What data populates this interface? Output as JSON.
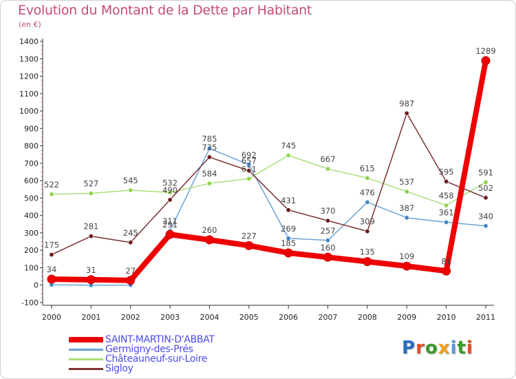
{
  "header": {
    "title": "Evolution du Montant de la Dette par Habitant",
    "unit": "(en €)"
  },
  "chart_data": {
    "type": "line",
    "title": "Evolution du Montant de la Dette par Habitant",
    "subtitle": "(en €)",
    "xlabel": "",
    "ylabel": "",
    "x": [
      "2000",
      "2001",
      "2002",
      "2003",
      "2004",
      "2005",
      "2006",
      "2007",
      "2008",
      "2009",
      "2010",
      "2011"
    ],
    "ylim": [
      -100,
      1400
    ],
    "yticks": [
      -100,
      0,
      100,
      200,
      300,
      400,
      500,
      600,
      700,
      800,
      900,
      1000,
      1100,
      1200,
      1300,
      1400
    ],
    "grid": false,
    "legend": "bottom-left",
    "series": [
      {
        "name": "Germigny-des-Prés",
        "color": "#6aa2d6",
        "marker": "#3f86c9",
        "values": [
          2,
          -1,
          0,
          311,
          785,
          692,
          269,
          257,
          476,
          387,
          361,
          340
        ],
        "labels": [
          "",
          "",
          "",
          "311",
          "785",
          "692",
          "269",
          "257",
          "476",
          "387",
          "361",
          "340"
        ]
      },
      {
        "name": "Châteauneuf-sur-Loire",
        "color": "#a9de78",
        "marker": "#8fd34f",
        "values": [
          522,
          527,
          545,
          532,
          584,
          611,
          745,
          667,
          615,
          537,
          458,
          591
        ],
        "labels": [
          "522",
          "527",
          "545",
          "532",
          "584",
          "611",
          "745",
          "667",
          "615",
          "537",
          "458",
          "591"
        ]
      },
      {
        "name": "Sigloy",
        "color": "#7a3030",
        "marker": "#6b1a1a",
        "values": [
          175,
          281,
          245,
          490,
          735,
          657,
          431,
          370,
          309,
          987,
          595,
          502
        ],
        "labels": [
          "175",
          "281",
          "245",
          "490",
          "735",
          "657",
          "431",
          "370",
          "309",
          "987",
          "595",
          "502"
        ]
      },
      {
        "name": "SAINT-MARTIN-D'ABBAT",
        "color": "#ee0000",
        "marker": "#ee0000",
        "values": [
          34,
          31,
          27,
          291,
          260,
          227,
          185,
          160,
          135,
          109,
          81,
          1289
        ],
        "labels": [
          "34",
          "31",
          "27",
          "291",
          "260",
          "227",
          "185",
          "160",
          "135",
          "109",
          "81",
          "1289"
        ]
      }
    ],
    "legend_order": [
      "SAINT-MARTIN-D'ABBAT",
      "Germigny-des-Prés",
      "Châteauneuf-sur-Loire",
      "Sigloy"
    ]
  },
  "legend": {
    "items": [
      {
        "label": "SAINT-MARTIN-D'ABBAT",
        "color": "#ee0000"
      },
      {
        "label": "Germigny-des-Prés",
        "color": "#6aa2d6"
      },
      {
        "label": "Châteauneuf-sur-Loire",
        "color": "#a9de78"
      },
      {
        "label": "Sigloy",
        "color": "#7a3030"
      }
    ]
  },
  "logo": {
    "text": "Proxiti",
    "letters": [
      "P",
      "r",
      "o",
      "x",
      "i",
      "t",
      "i"
    ],
    "colors": [
      "#2a6fc0",
      "#e0502a",
      "#3a9a2a",
      "#f0a020",
      "#5a9ad6",
      "#3a9a2a",
      "#e0502a"
    ]
  }
}
